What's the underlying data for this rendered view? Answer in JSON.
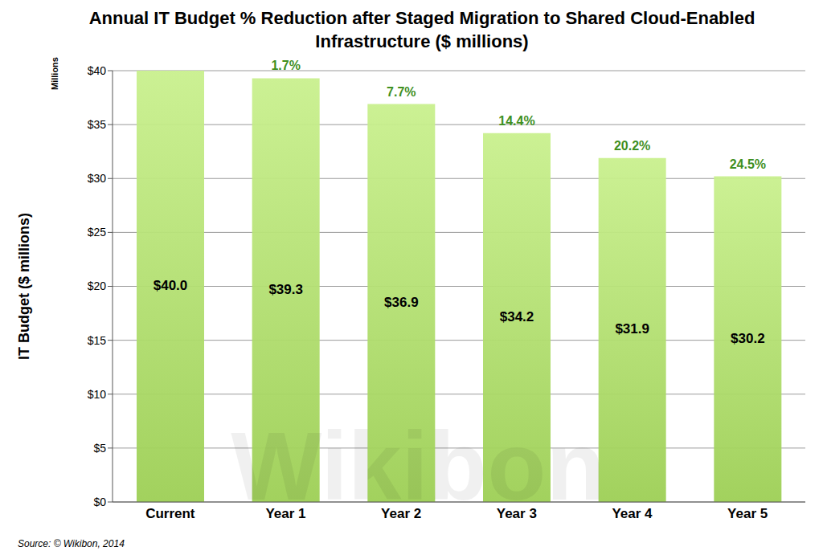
{
  "chart_data": {
    "type": "bar",
    "title": "Annual IT Budget % Reduction after Staged Migration to Shared Cloud-Enabled Infrastructure ($ millions)",
    "y_label": "IT Budget ($ millions)",
    "y_unit_label": "Millions",
    "source": "Source: © Wikibon, 2014",
    "watermark": "Wikibon",
    "categories": [
      "Current",
      "Year 1",
      "Year 2",
      "Year 3",
      "Year 4",
      "Year 5"
    ],
    "values": [
      40.0,
      39.3,
      36.9,
      34.2,
      31.9,
      30.2
    ],
    "value_labels": [
      "$40.0",
      "$39.3",
      "$36.9",
      "$34.2",
      "$31.9",
      "$30.2"
    ],
    "reductions": [
      null,
      1.7,
      7.7,
      14.4,
      20.2,
      24.5
    ],
    "reduction_labels": [
      null,
      "1.7%",
      "7.7%",
      "14.4%",
      "20.2%",
      "24.5%"
    ],
    "color": "#c9f08e",
    "ylim": [
      0,
      40
    ],
    "yticks": [
      {
        "value": 0,
        "label": "$0"
      },
      {
        "value": 5,
        "label": "$5"
      },
      {
        "value": 10,
        "label": "$10"
      },
      {
        "value": 15,
        "label": "$15"
      },
      {
        "value": 20,
        "label": "$20"
      },
      {
        "value": 25,
        "label": "$25"
      },
      {
        "value": 30,
        "label": "$30"
      },
      {
        "value": 35,
        "label": "$35"
      },
      {
        "value": 40,
        "label": "$40"
      }
    ],
    "grid": true,
    "data_labels": true
  }
}
